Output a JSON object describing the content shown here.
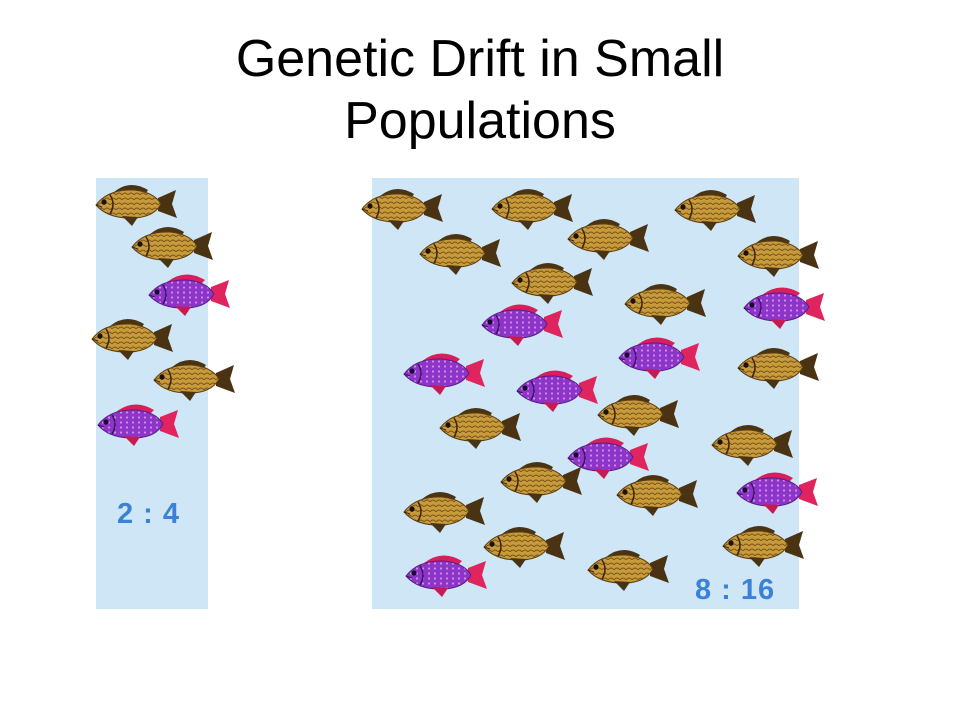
{
  "slide": {
    "title_line1": "Genetic Drift in Small",
    "title_line2": "Populations"
  },
  "populations": [
    {
      "name": "small",
      "ratio_label": "2 : 4",
      "purple_fish": 2,
      "brown_fish": 4
    },
    {
      "name": "large",
      "ratio_label": "8 : 16",
      "purple_fish": 8,
      "brown_fish": 16
    }
  ],
  "colors": {
    "water": "#cfe6f7",
    "label": "#3b82d6",
    "brown_fish_body": "#c49a3a",
    "purple_fish_body": "#8a35c9",
    "purple_fish_fin": "#e0245e"
  }
}
